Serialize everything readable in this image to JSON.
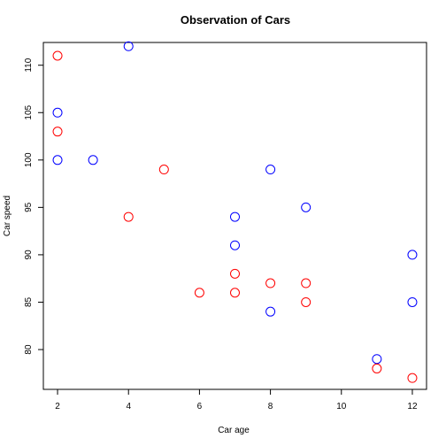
{
  "chart_data": {
    "type": "scatter",
    "title": "Observation of Cars",
    "xlabel": "Car age",
    "ylabel": "Car speed",
    "xlim": [
      1.6,
      12.4
    ],
    "ylim": [
      75.8,
      112.4
    ],
    "x_ticks": [
      2,
      4,
      6,
      8,
      10,
      12
    ],
    "y_ticks": [
      80,
      85,
      90,
      95,
      100,
      105,
      110
    ],
    "grid": false,
    "series": [
      {
        "color": "#0000ff",
        "marker": "open-circle",
        "points": [
          {
            "x": 2,
            "y": 100
          },
          {
            "x": 2,
            "y": 105
          },
          {
            "x": 3,
            "y": 100
          },
          {
            "x": 4,
            "y": 112
          },
          {
            "x": 7,
            "y": 94
          },
          {
            "x": 7,
            "y": 91
          },
          {
            "x": 8,
            "y": 99
          },
          {
            "x": 8,
            "y": 84
          },
          {
            "x": 9,
            "y": 95
          },
          {
            "x": 11,
            "y": 79
          },
          {
            "x": 12,
            "y": 90
          },
          {
            "x": 12,
            "y": 85
          }
        ]
      },
      {
        "color": "#ff0000",
        "marker": "open-circle",
        "points": [
          {
            "x": 2,
            "y": 111
          },
          {
            "x": 2,
            "y": 103
          },
          {
            "x": 4,
            "y": 94
          },
          {
            "x": 5,
            "y": 99
          },
          {
            "x": 6,
            "y": 86
          },
          {
            "x": 7,
            "y": 88
          },
          {
            "x": 7,
            "y": 86
          },
          {
            "x": 8,
            "y": 87
          },
          {
            "x": 9,
            "y": 87
          },
          {
            "x": 9,
            "y": 85
          },
          {
            "x": 11,
            "y": 78
          },
          {
            "x": 12,
            "y": 77
          }
        ]
      }
    ]
  }
}
